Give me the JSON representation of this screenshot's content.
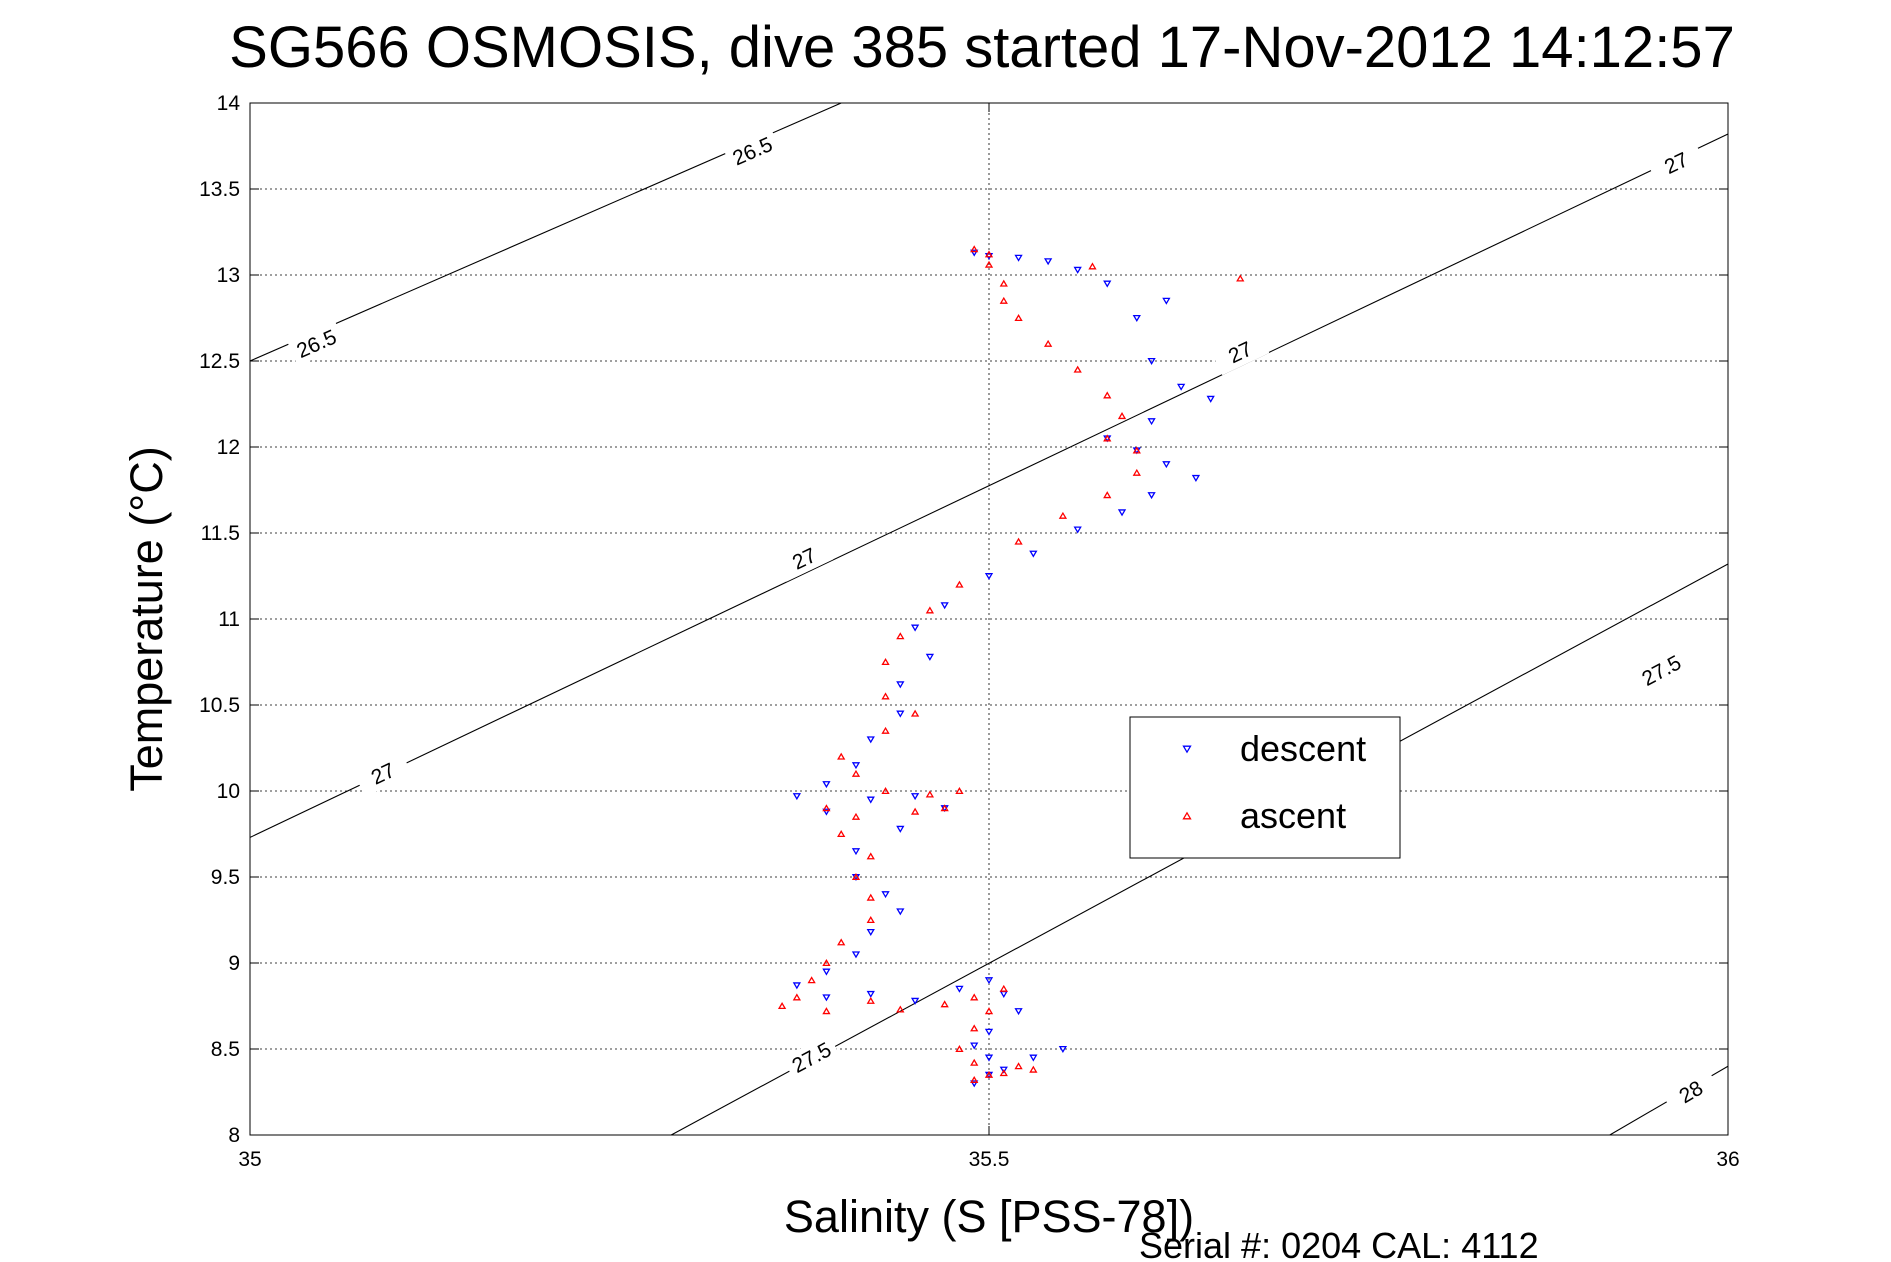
{
  "chart_data": {
    "type": "scatter",
    "title": "SG566 OSMOSIS, dive 385 started 17-Nov-2012 14:12:57",
    "xlabel": "Salinity (S [PSS-78])",
    "ylabel": "Temperature (°C)",
    "xlim": [
      35,
      36
    ],
    "ylim": [
      8,
      14
    ],
    "x_ticks": [
      "35",
      "35.5",
      "36"
    ],
    "y_ticks": [
      "8",
      "8.5",
      "9",
      "9.5",
      "10",
      "10.5",
      "11",
      "11.5",
      "12",
      "12.5",
      "13",
      "13.5",
      "14"
    ],
    "grid": true,
    "legend_position": "center-right",
    "footer": "Serial #: 0204  CAL: 4112",
    "density_contours": [
      {
        "level": "26.5",
        "line": [
          [
            35.0,
            12.5
          ],
          [
            35.4,
            14.0
          ]
        ],
        "labels": [
          [
            35.045,
            12.6
          ],
          [
            35.34,
            13.72
          ]
        ]
      },
      {
        "level": "27",
        "line": [
          [
            35.0,
            9.73
          ],
          [
            36.0,
            13.82
          ]
        ],
        "labels": [
          [
            35.09,
            10.1
          ],
          [
            35.375,
            11.35
          ],
          [
            35.67,
            12.55
          ],
          [
            35.965,
            13.65
          ]
        ]
      },
      {
        "level": "27.5",
        "line": [
          [
            35.285,
            8.0
          ],
          [
            36.0,
            11.32
          ]
        ],
        "labels": [
          [
            35.38,
            8.45
          ],
          [
            35.955,
            10.7
          ]
        ]
      },
      {
        "level": "28",
        "line": [
          [
            35.92,
            8.0
          ],
          [
            36.0,
            8.4
          ]
        ],
        "labels": [
          [
            35.975,
            8.25
          ]
        ]
      }
    ],
    "series": [
      {
        "name": "descent",
        "color": "#0000ff",
        "marker": "triangle-down",
        "points": [
          [
            35.49,
            13.13
          ],
          [
            35.5,
            13.11
          ],
          [
            35.52,
            13.1
          ],
          [
            35.54,
            13.08
          ],
          [
            35.56,
            13.03
          ],
          [
            35.58,
            12.95
          ],
          [
            35.62,
            12.85
          ],
          [
            35.6,
            12.75
          ],
          [
            35.61,
            12.5
          ],
          [
            35.63,
            12.35
          ],
          [
            35.65,
            12.28
          ],
          [
            35.61,
            12.15
          ],
          [
            35.58,
            12.05
          ],
          [
            35.6,
            11.98
          ],
          [
            35.62,
            11.9
          ],
          [
            35.64,
            11.82
          ],
          [
            35.61,
            11.72
          ],
          [
            35.59,
            11.62
          ],
          [
            35.56,
            11.52
          ],
          [
            35.53,
            11.38
          ],
          [
            35.5,
            11.25
          ],
          [
            35.47,
            11.08
          ],
          [
            35.45,
            10.95
          ],
          [
            35.46,
            10.78
          ],
          [
            35.44,
            10.62
          ],
          [
            35.44,
            10.45
          ],
          [
            35.42,
            10.3
          ],
          [
            35.41,
            10.15
          ],
          [
            35.39,
            10.04
          ],
          [
            35.37,
            9.97
          ],
          [
            35.39,
            9.88
          ],
          [
            35.42,
            9.95
          ],
          [
            35.45,
            9.97
          ],
          [
            35.47,
            9.9
          ],
          [
            35.44,
            9.78
          ],
          [
            35.41,
            9.65
          ],
          [
            35.41,
            9.5
          ],
          [
            35.43,
            9.4
          ],
          [
            35.44,
            9.3
          ],
          [
            35.42,
            9.18
          ],
          [
            35.41,
            9.05
          ],
          [
            35.39,
            8.95
          ],
          [
            35.37,
            8.87
          ],
          [
            35.39,
            8.8
          ],
          [
            35.42,
            8.82
          ],
          [
            35.45,
            8.78
          ],
          [
            35.48,
            8.85
          ],
          [
            35.5,
            8.9
          ],
          [
            35.51,
            8.82
          ],
          [
            35.52,
            8.72
          ],
          [
            35.5,
            8.6
          ],
          [
            35.49,
            8.52
          ],
          [
            35.5,
            8.45
          ],
          [
            35.5,
            8.35
          ],
          [
            35.49,
            8.3
          ],
          [
            35.51,
            8.38
          ],
          [
            35.53,
            8.45
          ],
          [
            35.55,
            8.5
          ]
        ]
      },
      {
        "name": "ascent",
        "color": "#ff0000",
        "marker": "triangle-up",
        "points": [
          [
            35.49,
            13.15
          ],
          [
            35.5,
            13.12
          ],
          [
            35.5,
            13.06
          ],
          [
            35.51,
            12.95
          ],
          [
            35.51,
            12.85
          ],
          [
            35.52,
            12.75
          ],
          [
            35.54,
            12.6
          ],
          [
            35.56,
            12.45
          ],
          [
            35.58,
            12.3
          ],
          [
            35.67,
            12.98
          ],
          [
            35.57,
            13.05
          ],
          [
            35.59,
            12.18
          ],
          [
            35.58,
            12.05
          ],
          [
            35.6,
            11.98
          ],
          [
            35.6,
            11.85
          ],
          [
            35.58,
            11.72
          ],
          [
            35.55,
            11.6
          ],
          [
            35.52,
            11.45
          ],
          [
            35.48,
            11.2
          ],
          [
            35.46,
            11.05
          ],
          [
            35.44,
            10.9
          ],
          [
            35.43,
            10.75
          ],
          [
            35.43,
            10.55
          ],
          [
            35.45,
            10.45
          ],
          [
            35.43,
            10.35
          ],
          [
            35.4,
            10.2
          ],
          [
            35.41,
            10.1
          ],
          [
            35.43,
            10.0
          ],
          [
            35.46,
            9.98
          ],
          [
            35.48,
            10.0
          ],
          [
            35.47,
            9.9
          ],
          [
            35.45,
            9.88
          ],
          [
            35.41,
            9.85
          ],
          [
            35.39,
            9.9
          ],
          [
            35.4,
            9.75
          ],
          [
            35.42,
            9.62
          ],
          [
            35.41,
            9.5
          ],
          [
            35.42,
            9.38
          ],
          [
            35.42,
            9.25
          ],
          [
            35.4,
            9.12
          ],
          [
            35.39,
            9.0
          ],
          [
            35.38,
            8.9
          ],
          [
            35.37,
            8.8
          ],
          [
            35.36,
            8.75
          ],
          [
            35.39,
            8.72
          ],
          [
            35.42,
            8.78
          ],
          [
            35.44,
            8.73
          ],
          [
            35.47,
            8.76
          ],
          [
            35.49,
            8.8
          ],
          [
            35.51,
            8.85
          ],
          [
            35.5,
            8.72
          ],
          [
            35.49,
            8.62
          ],
          [
            35.48,
            8.5
          ],
          [
            35.49,
            8.42
          ],
          [
            35.5,
            8.35
          ],
          [
            35.49,
            8.32
          ],
          [
            35.51,
            8.36
          ],
          [
            35.52,
            8.4
          ],
          [
            35.53,
            8.38
          ]
        ]
      }
    ]
  }
}
